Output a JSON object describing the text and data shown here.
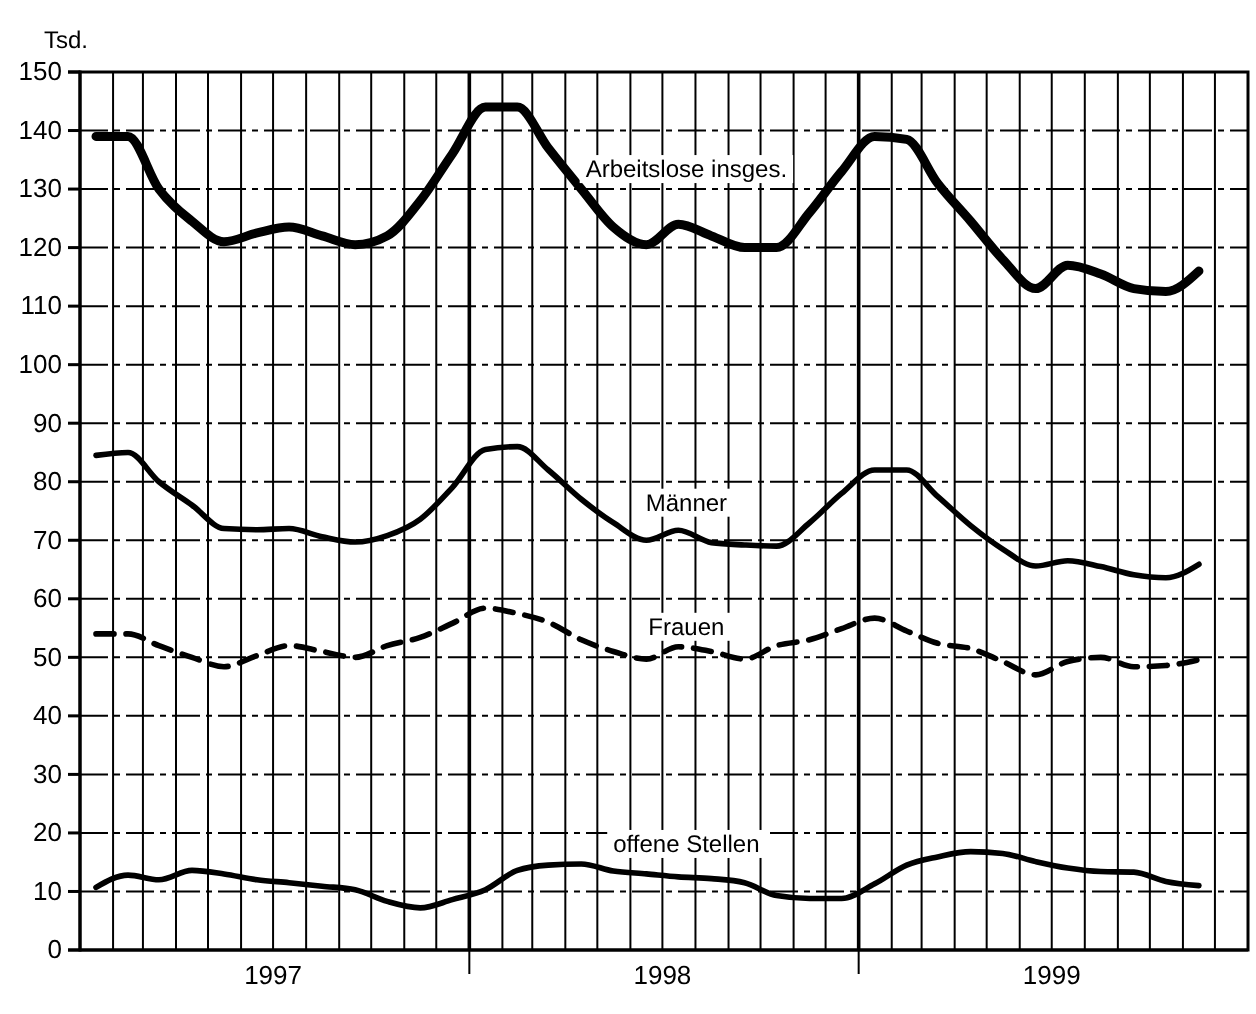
{
  "chart_data": {
    "type": "line",
    "ylabel": "Tsd.",
    "x": [
      "1997-01-16",
      "1997-02-15",
      "1997-03-16",
      "1997-04-16",
      "1997-05-16",
      "1997-06-16",
      "1997-07-16",
      "1997-08-16",
      "1997-09-16",
      "1997-10-16",
      "1997-11-16",
      "1997-12-16",
      "1998-01-16",
      "1998-02-15",
      "1998-03-16",
      "1998-04-16",
      "1998-05-16",
      "1998-06-16",
      "1998-07-16",
      "1998-08-16",
      "1998-09-16",
      "1998-10-16",
      "1998-11-16",
      "1998-12-16",
      "1999-01-16",
      "1999-02-15",
      "1999-03-16",
      "1999-04-16",
      "1999-05-16",
      "1999-06-16",
      "1999-07-16",
      "1999-08-16",
      "1999-09-16",
      "1999-10-16",
      "1999-11-16"
    ],
    "series": [
      {
        "name": "Arbeitslose insges.",
        "color": "#000000",
        "line_style": "solid",
        "values": [
          139,
          139,
          130,
          124.5,
          121,
          122.5,
          123.5,
          122,
          120.5,
          122,
          128,
          136,
          144,
          144,
          137,
          130,
          123.5,
          120.5,
          124,
          122,
          120,
          120,
          126,
          133,
          139,
          138.5,
          131,
          124.5,
          118,
          113,
          117,
          115.5,
          113,
          112.5,
          116
        ]
      },
      {
        "name": "Männer",
        "color": "#000000",
        "line_style": "solid",
        "values": [
          84.5,
          85,
          80,
          76,
          72,
          71.8,
          72,
          70.6,
          69.7,
          70.8,
          73.6,
          79,
          85.5,
          86,
          82,
          77,
          73,
          70,
          71.7,
          69.6,
          69.2,
          69,
          73,
          78,
          82,
          82,
          77.5,
          72.5,
          68.5,
          65.6,
          66.5,
          65.5,
          64.1,
          63.6,
          65.9
        ]
      },
      {
        "name": "Frauen",
        "color": "#000000",
        "line_style": "dashed",
        "values": [
          54,
          54,
          52,
          50,
          48.4,
          50.3,
          52,
          51,
          50,
          52,
          53.4,
          55.8,
          58.4,
          57.5,
          56,
          53,
          51,
          49.7,
          51.8,
          51,
          49.7,
          52,
          53,
          54.9,
          56.7,
          54.5,
          52.4,
          51.5,
          49.3,
          47,
          49.3,
          50,
          48.4,
          48.6,
          49.6
        ]
      },
      {
        "name": "offene Stellen",
        "color": "#000000",
        "line_style": "solid",
        "values": [
          10.7,
          12.8,
          12,
          13.6,
          13,
          12,
          11.5,
          10.9,
          10.3,
          8.3,
          7.2,
          8.6,
          10.3,
          13.6,
          14.5,
          14.7,
          13.5,
          13,
          12.5,
          12.2,
          11.5,
          9.3,
          8.8,
          8.8,
          11.3,
          14.5,
          15.9,
          16.8,
          16.5,
          15.1,
          14,
          13.4,
          13.3,
          11.7,
          11
        ]
      }
    ],
    "xlim": [
      "1997-01-01",
      "2000-01-01"
    ],
    "xticks": [
      {
        "value": "1997-02-01",
        "label": null
      },
      {
        "value": "1997-03-01",
        "label": null
      },
      {
        "value": "1997-04-01",
        "label": null
      },
      {
        "value": "1997-05-01",
        "label": null
      },
      {
        "value": "1997-06-01",
        "label": null
      },
      {
        "value": "1997-07-01",
        "label": "1997"
      },
      {
        "value": "1997-08-01",
        "label": null
      },
      {
        "value": "1997-09-01",
        "label": null
      },
      {
        "value": "1997-10-01",
        "label": null
      },
      {
        "value": "1997-11-01",
        "label": null
      },
      {
        "value": "1997-12-01",
        "label": null
      },
      {
        "value": "1998-01-01",
        "label": null
      },
      {
        "value": "1998-02-01",
        "label": null
      },
      {
        "value": "1998-03-01",
        "label": null
      },
      {
        "value": "1998-04-01",
        "label": null
      },
      {
        "value": "1998-05-01",
        "label": null
      },
      {
        "value": "1998-06-01",
        "label": null
      },
      {
        "value": "1998-07-01",
        "label": "1998"
      },
      {
        "value": "1998-08-01",
        "label": null
      },
      {
        "value": "1998-09-01",
        "label": null
      },
      {
        "value": "1998-10-01",
        "label": null
      },
      {
        "value": "1998-11-01",
        "label": null
      },
      {
        "value": "1998-12-01",
        "label": null
      },
      {
        "value": "1999-01-01",
        "label": null
      },
      {
        "value": "1999-02-01",
        "label": null
      },
      {
        "value": "1999-03-01",
        "label": null
      },
      {
        "value": "1999-04-01",
        "label": null
      },
      {
        "value": "1999-05-01",
        "label": null
      },
      {
        "value": "1999-06-01",
        "label": null
      },
      {
        "value": "1999-07-01",
        "label": "1999"
      },
      {
        "value": "1999-08-01",
        "label": null
      },
      {
        "value": "1999-09-01",
        "label": null
      },
      {
        "value": "1999-10-01",
        "label": null
      },
      {
        "value": "1999-11-01",
        "label": null
      },
      {
        "value": "1999-12-01",
        "label": null
      }
    ],
    "ylim": [
      0,
      150
    ],
    "yticks": [
      0,
      10,
      20,
      30,
      40,
      50,
      60,
      70,
      80,
      90,
      100,
      110,
      120,
      130,
      140,
      150
    ],
    "grid": true,
    "legend": false,
    "marker": "none"
  }
}
